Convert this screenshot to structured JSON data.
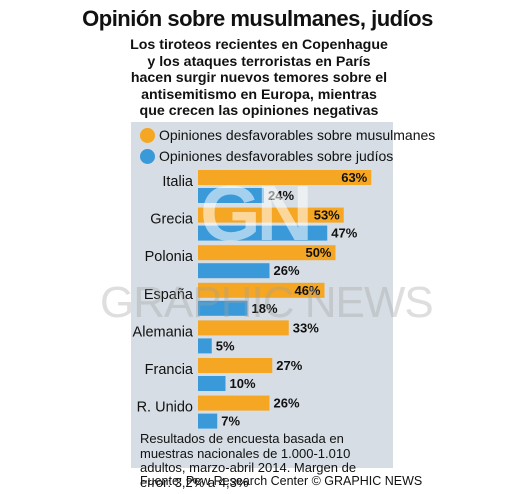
{
  "title": "Opinión sobre musulmanes, judíos",
  "subtitle": "Los tiroteos recientes en Copenhague y los ataques terroristas en París hacen surgir nuevos temores sobre el antisemitismo en Europa, mientras que crecen las opiniones negativas sobre las minorías musulmanas",
  "legend": [
    {
      "label": "Opiniones desfavorables sobre musulmanes",
      "color": "#f5a623"
    },
    {
      "label": "Opiniones desfavorables sobre judíos",
      "color": "#3a9ad9"
    }
  ],
  "note": "Resultados de encuesta basada en muestras nacionales de 1.000-1.010 adultos, marzo-abril 2014. Margen de error: 3,2% a 4,3%",
  "source": "Fuente: Pew Research Center © GRAPHIC NEWS",
  "watermark": {
    "logo": "GN",
    "text": "GRAPHIC NEWS"
  },
  "chart_data": {
    "type": "bar",
    "categories": [
      "Italia",
      "Grecia",
      "Polonia",
      "España",
      "Alemania",
      "Francia",
      "R. Unido"
    ],
    "series": [
      {
        "name": "Opiniones desfavorables sobre musulmanes",
        "values": [
          63,
          53,
          50,
          46,
          33,
          27,
          26
        ]
      },
      {
        "name": "Opiniones desfavorables sobre judíos",
        "values": [
          24,
          47,
          26,
          18,
          5,
          10,
          7
        ]
      }
    ],
    "value_labels": {
      "musulmanes": [
        "63%",
        "53%",
        "50%",
        "46%",
        "33%",
        "27%",
        "26%"
      ],
      "judios": [
        "24%",
        "47%",
        "26%",
        "18%",
        "5%",
        "10%",
        "7%"
      ]
    },
    "colors": {
      "musulmanes": "#f5a623",
      "judios": "#3a9ad9"
    },
    "orientation": "horizontal",
    "xlim": [
      0,
      63
    ]
  }
}
